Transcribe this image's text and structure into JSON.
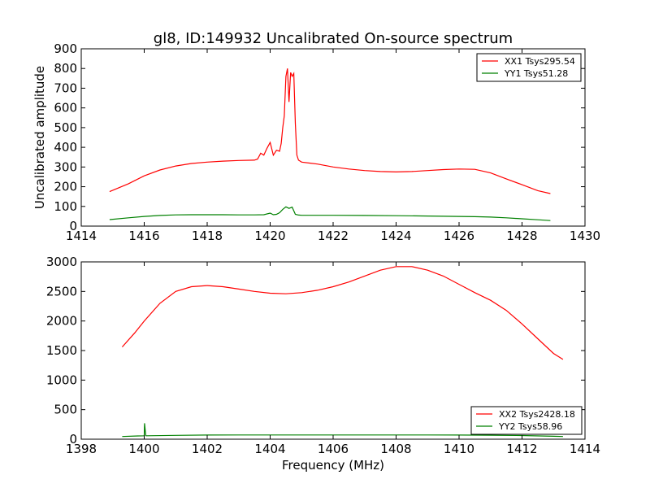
{
  "chart_data": [
    {
      "type": "line",
      "title": "gl8, ID:149932 Uncalibrated On-source spectrum",
      "xlabel": "",
      "ylabel": "Uncalibrated amplitude",
      "xlim": [
        1414,
        1430
      ],
      "ylim": [
        0,
        900
      ],
      "xticks": [
        1414,
        1416,
        1418,
        1420,
        1422,
        1424,
        1426,
        1428,
        1430
      ],
      "yticks": [
        0,
        100,
        200,
        300,
        400,
        500,
        600,
        700,
        800,
        900
      ],
      "legend_position": "top-right",
      "series": [
        {
          "name": "XX1 Tsys295.54",
          "color": "#ff0000",
          "x": [
            1414.9,
            1415.5,
            1416.0,
            1416.5,
            1417.0,
            1417.5,
            1418.0,
            1418.5,
            1419.0,
            1419.5,
            1419.6,
            1419.7,
            1419.8,
            1419.9,
            1420.0,
            1420.1,
            1420.2,
            1420.3,
            1420.35,
            1420.4,
            1420.45,
            1420.5,
            1420.55,
            1420.6,
            1420.65,
            1420.7,
            1420.75,
            1420.8,
            1420.85,
            1420.9,
            1421.0,
            1421.5,
            1422.0,
            1422.5,
            1423.0,
            1423.5,
            1424.0,
            1424.5,
            1425.0,
            1425.5,
            1426.0,
            1426.5,
            1427.0,
            1427.5,
            1428.0,
            1428.5,
            1428.9
          ],
          "y": [
            175,
            215,
            255,
            285,
            305,
            318,
            325,
            330,
            333,
            335,
            340,
            370,
            360,
            395,
            425,
            360,
            385,
            380,
            420,
            500,
            560,
            760,
            800,
            630,
            780,
            760,
            775,
            520,
            360,
            335,
            325,
            315,
            300,
            290,
            282,
            277,
            275,
            277,
            282,
            287,
            290,
            288,
            270,
            240,
            210,
            180,
            165
          ]
        },
        {
          "name": "YY1 Tsys51.28",
          "color": "#008000",
          "x": [
            1414.9,
            1415.5,
            1416.0,
            1416.5,
            1417.0,
            1417.5,
            1418.0,
            1418.5,
            1419.0,
            1419.5,
            1419.8,
            1420.0,
            1420.1,
            1420.2,
            1420.3,
            1420.4,
            1420.5,
            1420.6,
            1420.7,
            1420.8,
            1420.9,
            1421.0,
            1422.0,
            1423.0,
            1424.0,
            1425.0,
            1426.0,
            1426.5,
            1427.0,
            1427.5,
            1428.0,
            1428.5,
            1428.9
          ],
          "y": [
            33,
            42,
            49,
            54,
            57,
            58,
            58,
            58,
            57,
            57,
            58,
            66,
            58,
            60,
            68,
            85,
            98,
            90,
            96,
            60,
            56,
            55,
            55,
            54,
            53,
            51,
            49,
            48,
            46,
            42,
            37,
            32,
            28
          ]
        }
      ]
    },
    {
      "type": "line",
      "title": "",
      "xlabel": "Frequency (MHz)",
      "ylabel": "",
      "xlim": [
        1398,
        1414
      ],
      "ylim": [
        0,
        3000
      ],
      "xticks": [
        1398,
        1400,
        1402,
        1404,
        1406,
        1408,
        1410,
        1412,
        1414
      ],
      "yticks": [
        0,
        500,
        1000,
        1500,
        2000,
        2500,
        3000
      ],
      "legend_position": "bottom-right",
      "series": [
        {
          "name": "XX2 Tsys2428.18",
          "color": "#ff0000",
          "x": [
            1399.3,
            1399.7,
            1400.0,
            1400.5,
            1401.0,
            1401.5,
            1402.0,
            1402.5,
            1403.0,
            1403.5,
            1404.0,
            1404.5,
            1405.0,
            1405.5,
            1406.0,
            1406.5,
            1407.0,
            1407.5,
            1408.0,
            1408.5,
            1409.0,
            1409.5,
            1410.0,
            1410.5,
            1411.0,
            1411.5,
            1412.0,
            1412.5,
            1413.0,
            1413.3
          ],
          "y": [
            1560,
            1800,
            2000,
            2300,
            2500,
            2580,
            2600,
            2580,
            2540,
            2500,
            2470,
            2460,
            2480,
            2520,
            2580,
            2660,
            2760,
            2860,
            2920,
            2920,
            2860,
            2760,
            2620,
            2480,
            2350,
            2180,
            1950,
            1700,
            1450,
            1350
          ]
        },
        {
          "name": "YY2 Tsys58.96",
          "color": "#008000",
          "x": [
            1399.3,
            1399.8,
            1400.0,
            1400.01,
            1400.05,
            1400.06,
            1401.0,
            1402.0,
            1403.0,
            1404.0,
            1405.0,
            1406.0,
            1407.0,
            1408.0,
            1409.0,
            1410.0,
            1411.0,
            1412.0,
            1413.0,
            1413.3
          ],
          "y": [
            45,
            55,
            58,
            270,
            60,
            58,
            65,
            70,
            71,
            71,
            72,
            72,
            72,
            72,
            71,
            70,
            68,
            62,
            50,
            45
          ]
        }
      ]
    }
  ]
}
